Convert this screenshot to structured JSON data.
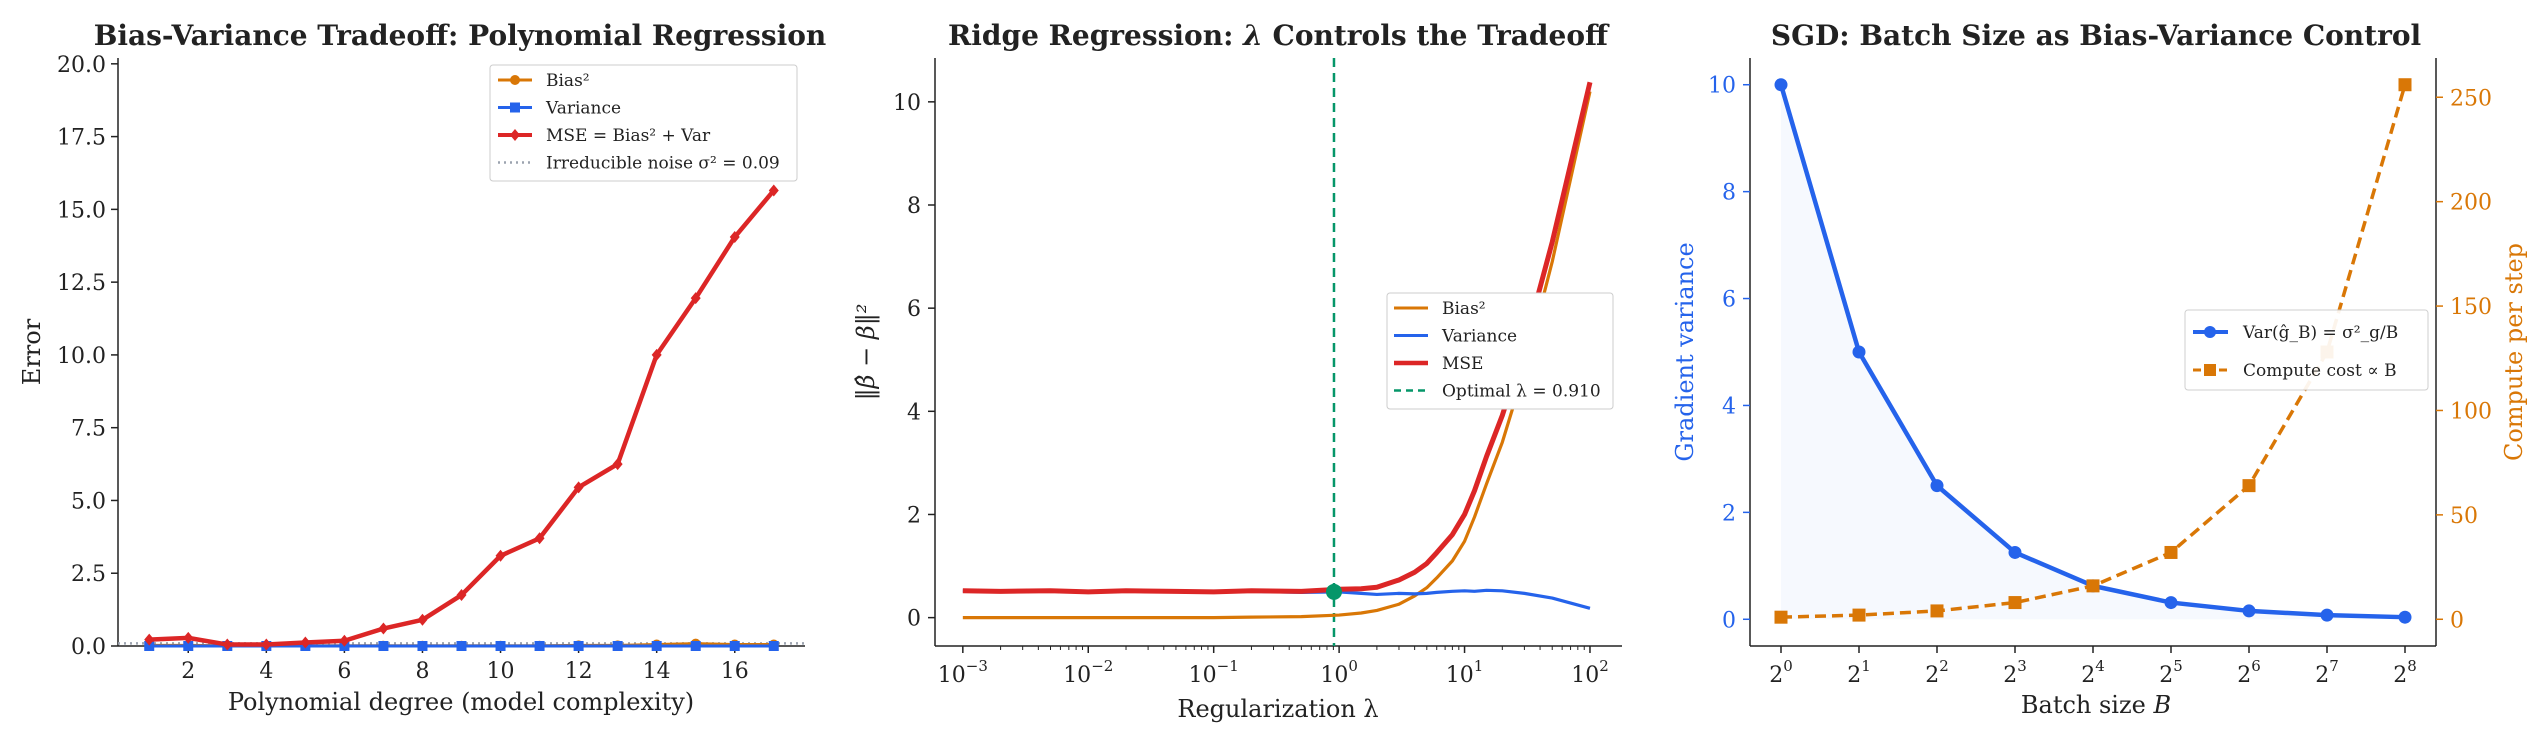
{
  "colors": {
    "bias": "#d97706",
    "variance": "#2563eb",
    "mse": "#dc2626",
    "noise": "#9ca3af",
    "optimal": "#059669",
    "compute": "#d97706",
    "grad_var": "#2563eb"
  },
  "chart_data": [
    {
      "type": "line",
      "title": "Bias-Variance Tradeoff: Polynomial Regression",
      "xlabel": "Polynomial degree (model complexity)",
      "ylabel": "Error",
      "xlim": [
        0.2,
        17.8
      ],
      "ylim": [
        0,
        20.2
      ],
      "xticks": [
        2,
        4,
        6,
        8,
        10,
        12,
        14,
        16
      ],
      "yticks": [
        0.0,
        2.5,
        5.0,
        7.5,
        10.0,
        12.5,
        15.0,
        17.5,
        20.0
      ],
      "ytick_labels": [
        "0.0",
        "2.5",
        "5.0",
        "7.5",
        "10.0",
        "12.5",
        "15.0",
        "17.5",
        "20.0"
      ],
      "x": [
        1,
        2,
        3,
        4,
        5,
        6,
        7,
        8,
        9,
        10,
        11,
        12,
        13,
        14,
        15,
        16,
        17
      ],
      "series": [
        {
          "name": "Bias²",
          "color_key": "bias",
          "marker": "circle",
          "values": [
            0.02,
            0.02,
            0.01,
            0.01,
            0.01,
            0.01,
            0.01,
            0.01,
            0.01,
            0.01,
            0.01,
            0.02,
            0.02,
            0.05,
            0.08,
            0.05,
            0.05
          ]
        },
        {
          "name": "Variance",
          "color_key": "variance",
          "marker": "square",
          "values": [
            0.0,
            0.0,
            0.0,
            0.0,
            0.0,
            0.0,
            0.0,
            0.0,
            0.0,
            0.0,
            0.0,
            0.0,
            0.0,
            0.0,
            0.0,
            0.0,
            0.0
          ]
        },
        {
          "name": "MSE = Bias² + Var",
          "color_key": "mse",
          "marker": "diamond",
          "values": [
            0.22,
            0.28,
            0.05,
            0.05,
            0.12,
            0.18,
            0.6,
            0.9,
            1.75,
            3.1,
            3.7,
            5.45,
            6.25,
            10.0,
            11.95,
            14.05,
            15.65
          ]
        }
      ],
      "hlines": [
        {
          "name": "Irreducible noise σ² = 0.09",
          "value": 0.09,
          "color_key": "noise",
          "style": "dotted"
        }
      ],
      "legend_position": "upper right"
    },
    {
      "type": "line",
      "title": "Ridge Regression: λ Controls the Tradeoff",
      "xlabel": "Regularization λ",
      "ylabel": "‖β̂ − β‖²",
      "xscale": "log",
      "xlim": [
        0.0006,
        180
      ],
      "ylim": [
        -0.55,
        10.85
      ],
      "xticks": [
        0.001,
        0.01,
        0.1,
        1,
        10,
        100
      ],
      "xtick_labels": [
        [
          "10",
          "−3"
        ],
        [
          "10",
          "−2"
        ],
        [
          "10",
          "−1"
        ],
        [
          "10",
          "0"
        ],
        [
          "10",
          "1"
        ],
        [
          "10",
          "2"
        ]
      ],
      "yticks": [
        0,
        2,
        4,
        6,
        8,
        10
      ],
      "ytick_labels": [
        "0",
        "2",
        "4",
        "6",
        "8",
        "10"
      ],
      "x": [
        0.001,
        0.002,
        0.005,
        0.01,
        0.02,
        0.05,
        0.1,
        0.2,
        0.5,
        1,
        1.5,
        2,
        3,
        4,
        5,
        6,
        8,
        10,
        12,
        15,
        20,
        30,
        50,
        100
      ],
      "series": [
        {
          "name": "Bias²",
          "color_key": "bias",
          "values": [
            0.0,
            0.0,
            0.0,
            0.0,
            0.0,
            0.0,
            0.0,
            0.01,
            0.02,
            0.05,
            0.09,
            0.14,
            0.26,
            0.42,
            0.58,
            0.77,
            1.1,
            1.48,
            1.95,
            2.6,
            3.4,
            4.8,
            6.9,
            10.2
          ]
        },
        {
          "name": "Variance",
          "color_key": "variance",
          "values": [
            0.52,
            0.51,
            0.52,
            0.5,
            0.52,
            0.51,
            0.5,
            0.51,
            0.49,
            0.5,
            0.47,
            0.45,
            0.47,
            0.46,
            0.47,
            0.49,
            0.51,
            0.52,
            0.51,
            0.53,
            0.52,
            0.47,
            0.38,
            0.18
          ]
        },
        {
          "name": "MSE",
          "color_key": "mse",
          "values": [
            0.52,
            0.51,
            0.52,
            0.5,
            0.52,
            0.51,
            0.5,
            0.52,
            0.51,
            0.55,
            0.56,
            0.59,
            0.73,
            0.88,
            1.05,
            1.26,
            1.61,
            2.0,
            2.46,
            3.13,
            3.92,
            5.27,
            7.28,
            10.38
          ]
        }
      ],
      "vlines": [
        {
          "name": "Optimal λ = 0.910",
          "value": 0.91,
          "color_key": "optimal",
          "style": "dashed"
        }
      ],
      "points": [
        {
          "x": 0.91,
          "y": 0.5,
          "color_key": "optimal"
        }
      ],
      "legend_position": "center right"
    },
    {
      "type": "line",
      "title": "SGD: Batch Size as Bias-Variance Control",
      "xlabel": "Batch size B",
      "ylabel": "Gradient variance",
      "ylabel_right": "Compute per step",
      "x": [
        1,
        2,
        4,
        8,
        16,
        32,
        64,
        128,
        256
      ],
      "xtick_labels": [
        [
          "2",
          "0"
        ],
        [
          "2",
          "1"
        ],
        [
          "2",
          "2"
        ],
        [
          "2",
          "3"
        ],
        [
          "2",
          "4"
        ],
        [
          "2",
          "5"
        ],
        [
          "2",
          "6"
        ],
        [
          "2",
          "7"
        ],
        [
          "2",
          "8"
        ]
      ],
      "ylim": [
        -0.5,
        10.5
      ],
      "ylim_right": [
        -12.8,
        268.8
      ],
      "yticks": [
        0,
        2,
        4,
        6,
        8,
        10
      ],
      "ytick_labels": [
        "0",
        "2",
        "4",
        "6",
        "8",
        "10"
      ],
      "yticks_right": [
        0,
        50,
        100,
        150,
        200,
        250
      ],
      "ytick_labels_right": [
        "0",
        "50",
        "100",
        "150",
        "200",
        "250"
      ],
      "series": [
        {
          "name": "Var(ĝ_B) = σ²_g/B",
          "color_key": "grad_var",
          "marker": "circle",
          "axis": "left",
          "fill": true,
          "values": [
            10,
            5,
            2.5,
            1.25,
            0.625,
            0.3125,
            0.156,
            0.078,
            0.039
          ]
        },
        {
          "name": "Compute cost ∝ B",
          "color_key": "compute",
          "marker": "square",
          "axis": "right",
          "style": "dashed",
          "values": [
            1,
            2,
            4,
            8,
            16,
            32,
            64,
            128,
            256
          ]
        }
      ],
      "legend_position": "center right"
    }
  ]
}
